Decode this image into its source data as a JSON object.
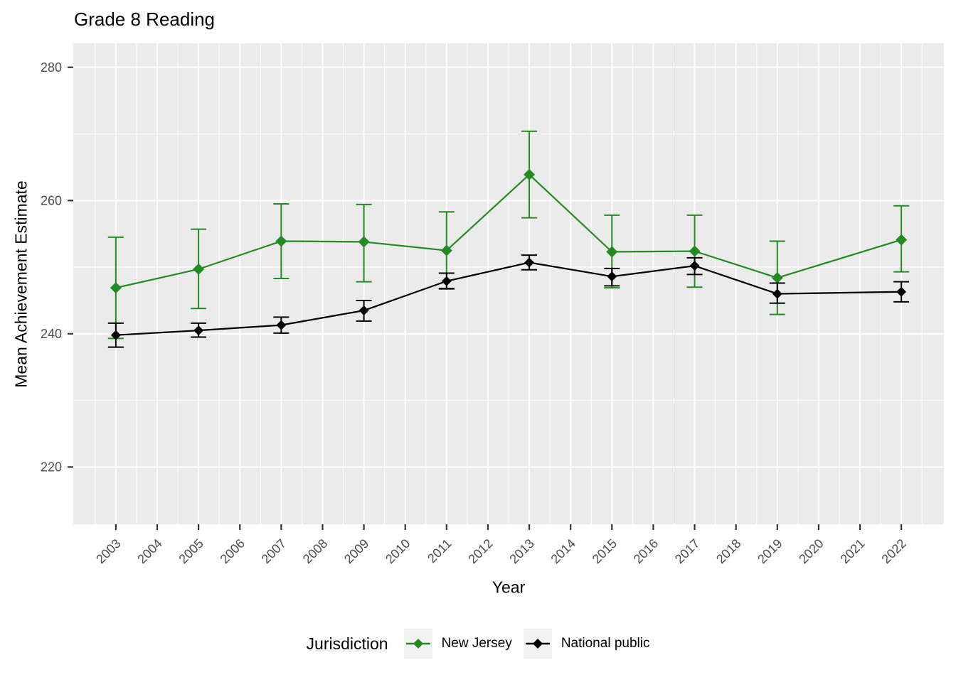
{
  "chart_data": {
    "type": "line",
    "title": "Grade 8 Reading",
    "xlabel": "Year",
    "ylabel": "Mean Achievement Estimate",
    "legend_title": "Jurisdiction",
    "legend_position": "bottom",
    "grid": true,
    "error_bars": true,
    "x_domain": [
      2001.97,
      2023.03
    ],
    "y_domain": [
      211.4,
      283.6
    ],
    "x_major_ticks": [
      2003,
      2004,
      2005,
      2006,
      2007,
      2008,
      2009,
      2010,
      2011,
      2012,
      2013,
      2014,
      2015,
      2016,
      2017,
      2018,
      2019,
      2020,
      2021,
      2022
    ],
    "x_minor_ticks": [
      2002.5,
      2003.5,
      2004.5,
      2005.5,
      2006.5,
      2007.5,
      2008.5,
      2009.5,
      2010.5,
      2011.5,
      2012.5,
      2013.5,
      2014.5,
      2015.5,
      2016.5,
      2017.5,
      2018.5,
      2019.5,
      2020.5,
      2021.5,
      2022.5
    ],
    "y_major_ticks": [
      220,
      240,
      260,
      280
    ],
    "y_minor_ticks": [
      230,
      250,
      270
    ],
    "style": {
      "panel_bg": "#EBEBEB",
      "grid_color": "#FFFFFF",
      "tick_color": "#333333",
      "tick_label_color": "#4D4D4D",
      "legend_key_bg": "#F2F2F2",
      "background": "#FFFFFF"
    },
    "series": [
      {
        "name": "New Jersey",
        "color": "#228B22",
        "marker": "diamond",
        "marker_size": 8,
        "x": [
          2003,
          2005,
          2007,
          2009,
          2011,
          2013,
          2015,
          2017,
          2019,
          2022
        ],
        "y": [
          246.9,
          249.7,
          253.9,
          253.8,
          252.5,
          263.9,
          252.3,
          252.4,
          248.4,
          254.1
        ],
        "ci_low": [
          239.3,
          243.8,
          248.3,
          247.8,
          246.7,
          257.4,
          246.9,
          247.0,
          242.9,
          249.3
        ],
        "ci_high": [
          254.5,
          255.7,
          259.5,
          259.4,
          258.3,
          270.4,
          257.8,
          257.8,
          253.9,
          259.2
        ]
      },
      {
        "name": "National public",
        "color": "#000000",
        "marker": "diamond",
        "marker_size": 7,
        "x": [
          2003,
          2005,
          2007,
          2009,
          2011,
          2013,
          2015,
          2017,
          2019,
          2022
        ],
        "y": [
          239.8,
          240.5,
          241.3,
          243.5,
          247.9,
          250.7,
          248.6,
          250.2,
          246.0,
          246.3
        ],
        "ci_low": [
          238.0,
          239.5,
          240.1,
          241.9,
          246.8,
          249.6,
          247.2,
          248.9,
          244.6,
          244.8
        ],
        "ci_high": [
          241.6,
          241.6,
          242.5,
          245.0,
          249.1,
          251.8,
          249.8,
          251.4,
          247.6,
          247.8
        ]
      }
    ]
  }
}
